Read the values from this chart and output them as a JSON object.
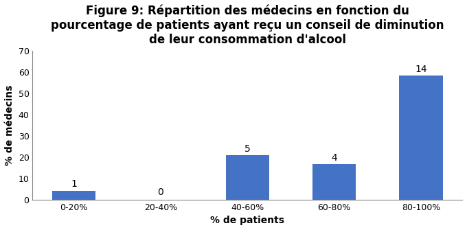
{
  "title": "Figure 9: Répartition des médecins en fonction du\npourcentage de patients ayant reçu un conseil de diminution\nde leur consommation d'alcool",
  "xlabel": "% de patients",
  "ylabel": "% de médecins",
  "categories": [
    "0-20%",
    "20-40%",
    "40-60%",
    "60-80%",
    "80-100%"
  ],
  "values": [
    4.17,
    0,
    20.83,
    16.67,
    58.33
  ],
  "labels": [
    1,
    0,
    5,
    4,
    14
  ],
  "bar_color": "#4472C4",
  "ylim": [
    0,
    70
  ],
  "yticks": [
    0,
    10,
    20,
    30,
    40,
    50,
    60,
    70
  ],
  "background_color": "#FFFFFF",
  "title_fontsize": 12,
  "axis_label_fontsize": 10,
  "tick_fontsize": 9,
  "annotation_fontsize": 10
}
